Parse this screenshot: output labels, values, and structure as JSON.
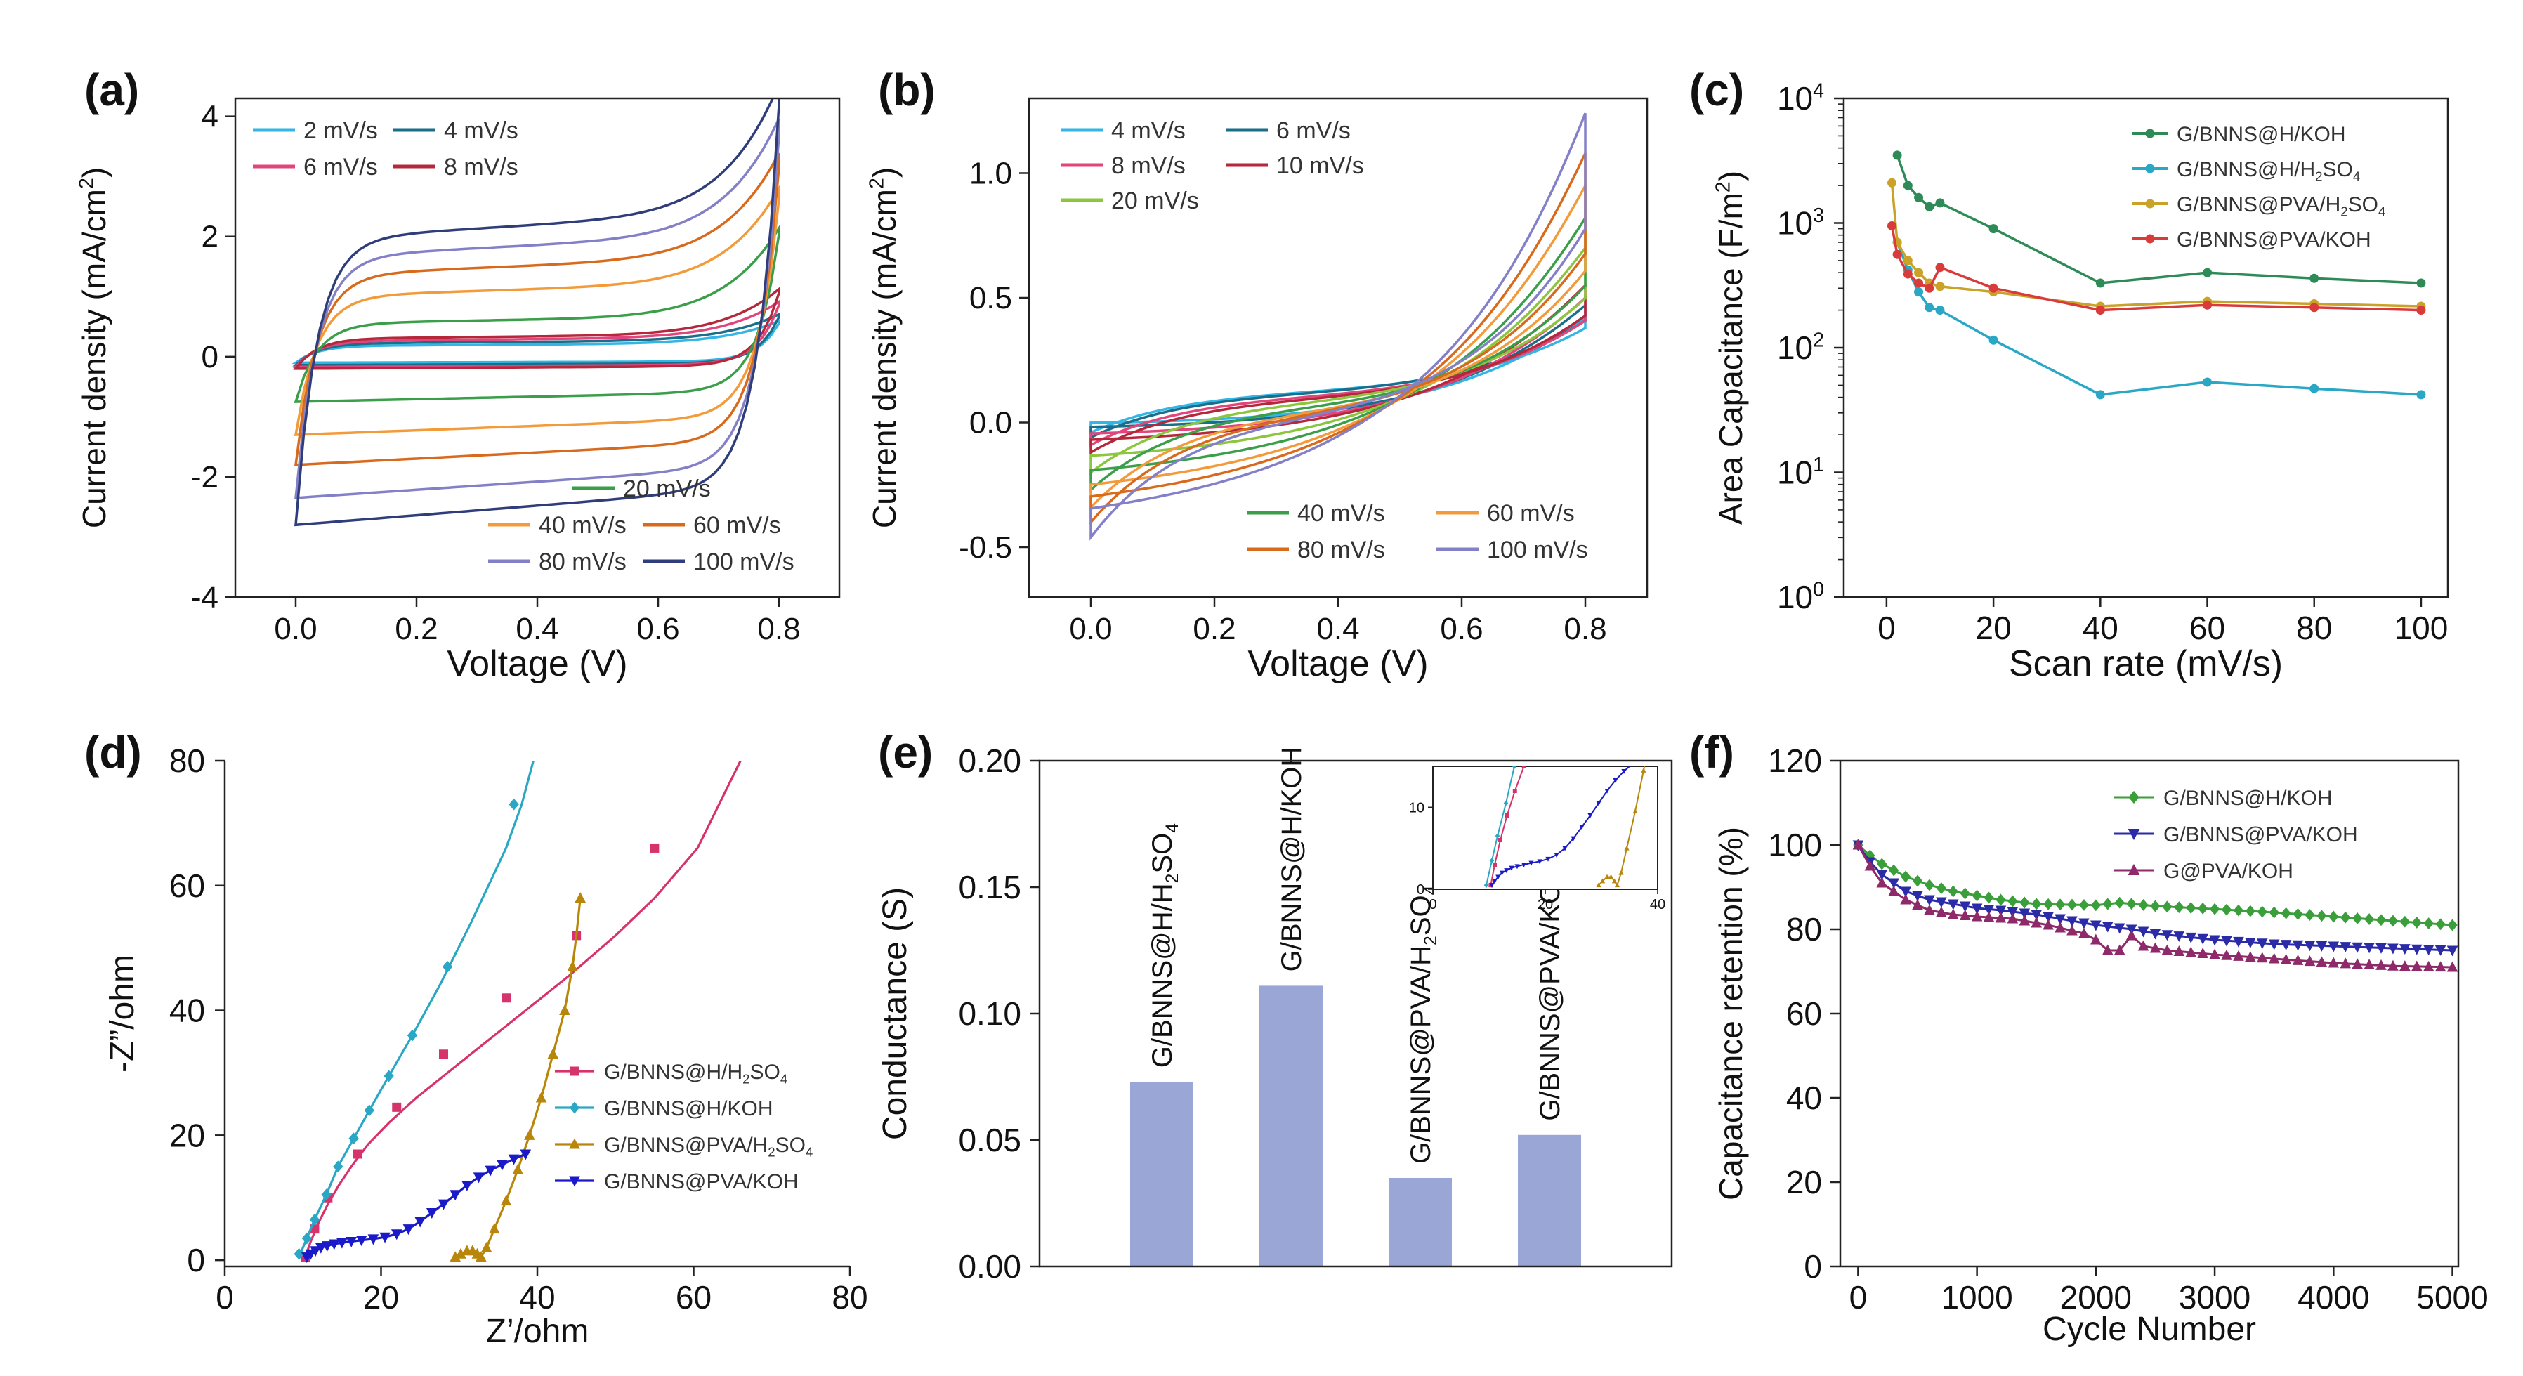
{
  "figure": {
    "panel_labels": [
      "(a)",
      "(b)",
      "(c)",
      "(d)",
      "(e)",
      "(f)"
    ]
  },
  "chart_data": [
    {
      "panel": "(a)",
      "type": "line",
      "title": "",
      "xlabel": "Voltage (V)",
      "ylabel_main": "Current density (mA/cm",
      "ylabel_sup": "2",
      "ylabel_tail": ")",
      "xlim": [
        -0.1,
        0.9
      ],
      "ylim": [
        -4,
        4.3
      ],
      "xticks": [
        0.0,
        0.2,
        0.4,
        0.6,
        0.8
      ],
      "xtick_labels": [
        "0.0",
        "0.2",
        "0.4",
        "0.6",
        "0.8"
      ],
      "yticks": [
        -4,
        -2,
        0,
        2,
        4
      ],
      "ytick_labels": [
        "-4",
        "-2",
        "0",
        "2",
        "4"
      ],
      "cv_model": "capacitive",
      "series": [
        {
          "name": "2 mV/s",
          "color": "#33b5e5",
          "iplus": 0.18,
          "iminus": -0.1,
          "iend": 0.55
        },
        {
          "name": "4 mV/s",
          "color": "#1a6e8a",
          "iplus": 0.22,
          "iminus": -0.14,
          "iend": 0.65
        },
        {
          "name": "6 mV/s",
          "color": "#e0457b",
          "iplus": 0.26,
          "iminus": -0.17,
          "iend": 0.85
        },
        {
          "name": "8 mV/s",
          "color": "#b5283c",
          "iplus": 0.3,
          "iminus": -0.2,
          "iend": 1.05
        },
        {
          "name": "20 mV/s",
          "color": "#3a9e4a",
          "iplus": 0.55,
          "iminus": -0.75,
          "iend": 2.0
        },
        {
          "name": "40 mV/s",
          "color": "#f39b3b",
          "iplus": 1.0,
          "iminus": -1.3,
          "iend": 2.55
        },
        {
          "name": "60 mV/s",
          "color": "#d86a1e",
          "iplus": 1.35,
          "iminus": -1.8,
          "iend": 3.05
        },
        {
          "name": "80 mV/s",
          "color": "#8480c8",
          "iplus": 1.65,
          "iminus": -2.35,
          "iend": 3.55
        },
        {
          "name": "100 mV/s",
          "color": "#2f3d7a",
          "iplus": 1.95,
          "iminus": -2.8,
          "iend": 4.05
        }
      ]
    },
    {
      "panel": "(b)",
      "type": "line",
      "title": "",
      "xlabel": "Voltage (V)",
      "ylabel_main": "Current density (mA/cm",
      "ylabel_sup": "2",
      "ylabel_tail": ")",
      "xlim": [
        -0.1,
        0.9
      ],
      "ylim": [
        -0.7,
        1.3
      ],
      "xticks": [
        0.0,
        0.2,
        0.4,
        0.6,
        0.8
      ],
      "xtick_labels": [
        "0.0",
        "0.2",
        "0.4",
        "0.6",
        "0.8"
      ],
      "yticks": [
        -0.5,
        0.0,
        0.5,
        1.0
      ],
      "ytick_labels": [
        "-0.5",
        "0.0",
        "0.5",
        "1.0"
      ],
      "cv_model": "resistive",
      "series": [
        {
          "name": "4 mV/s",
          "color": "#33b5e5",
          "iplus": 0.32,
          "iminus": -0.04,
          "iend": 0.42
        },
        {
          "name": "6 mV/s",
          "color": "#1a6e8a",
          "iplus": 0.35,
          "iminus": -0.06,
          "iend": 0.47
        },
        {
          "name": "8 mV/s",
          "color": "#e0457b",
          "iplus": 0.38,
          "iminus": -0.09,
          "iend": 0.5
        },
        {
          "name": "10 mV/s",
          "color": "#b5283c",
          "iplus": 0.42,
          "iminus": -0.12,
          "iend": 0.55
        },
        {
          "name": "20 mV/s",
          "color": "#8cc63f",
          "iplus": 0.55,
          "iminus": -0.2,
          "iend": 0.7
        },
        {
          "name": "40 mV/s",
          "color": "#3a9e4a",
          "iplus": 0.65,
          "iminus": -0.27,
          "iend": 0.82
        },
        {
          "name": "60 mV/s",
          "color": "#f39b3b",
          "iplus": 0.75,
          "iminus": -0.34,
          "iend": 0.95
        },
        {
          "name": "80 mV/s",
          "color": "#d86a1e",
          "iplus": 0.85,
          "iminus": -0.4,
          "iend": 1.08
        },
        {
          "name": "100 mV/s",
          "color": "#8480c8",
          "iplus": 0.95,
          "iminus": -0.46,
          "iend": 1.24
        }
      ]
    },
    {
      "panel": "(c)",
      "type": "line",
      "title": "",
      "xlabel": "Scan rate (mV/s)",
      "ylabel_main": "Area Capacitance (F/m",
      "ylabel_sup": "2",
      "ylabel_tail": ")",
      "yscale": "log",
      "xlim": [
        -8,
        105
      ],
      "ylim": [
        1,
        10000
      ],
      "xticks": [
        0,
        20,
        40,
        60,
        80,
        100
      ],
      "xtick_labels": [
        "0",
        "20",
        "40",
        "60",
        "80",
        "100"
      ],
      "yticks": [
        1,
        10,
        100,
        1000,
        10000
      ],
      "ytick_base": "10",
      "ytick_exps": [
        "0",
        "1",
        "2",
        "3",
        "4"
      ],
      "series": [
        {
          "name": "G/BNNS@H/KOH",
          "legend_main": "G/BNNS@H/KOH",
          "legend_sub": "",
          "legend_tail": "",
          "color": "#2e8b57",
          "x": [
            2,
            4,
            6,
            8,
            10,
            20,
            40,
            60,
            80,
            100
          ],
          "y": [
            3500,
            2000,
            1600,
            1350,
            1450,
            900,
            330,
            400,
            360,
            330
          ]
        },
        {
          "name": "G/BNNS@H/H2SO4",
          "legend_main": "G/BNNS@H/H",
          "legend_sub": "2",
          "legend_tail": "SO",
          "legend_sub2": "4",
          "color": "#2aa7c4",
          "x": [
            2,
            4,
            6,
            8,
            10,
            20,
            40,
            60,
            80,
            100
          ],
          "y": [
            700,
            420,
            280,
            210,
            200,
            115,
            42,
            53,
            47,
            42
          ]
        },
        {
          "name": "G/BNNS@PVA/H2SO4",
          "legend_main": "G/BNNS@PVA/H",
          "legend_sub": "2",
          "legend_tail": "SO",
          "legend_sub2": "4",
          "color": "#c9a227",
          "x": [
            1,
            2,
            4,
            6,
            8,
            10,
            20,
            40,
            60,
            80,
            100
          ],
          "y": [
            2100,
            700,
            500,
            400,
            330,
            310,
            280,
            215,
            235,
            225,
            215
          ]
        },
        {
          "name": "G/BNNS@PVA/KOH",
          "legend_main": "G/BNNS@PVA/KOH",
          "legend_sub": "",
          "legend_tail": "",
          "color": "#d93a3a",
          "x": [
            1,
            2,
            4,
            6,
            8,
            10,
            20,
            40,
            60,
            80,
            100
          ],
          "y": [
            950,
            560,
            390,
            330,
            300,
            440,
            300,
            200,
            220,
            210,
            200
          ]
        }
      ]
    },
    {
      "panel": "(d)",
      "type": "scatter",
      "title": "",
      "xlabel": "Z’/ohm",
      "ylabel_main": "-Z”/ohm",
      "ylabel_sup": "",
      "ylabel_tail": "",
      "xlim": [
        0,
        80
      ],
      "ylim": [
        -1,
        80
      ],
      "xticks": [
        0,
        20,
        40,
        60,
        80
      ],
      "xtick_labels": [
        "0",
        "20",
        "40",
        "60",
        "80"
      ],
      "yticks": [
        0,
        20,
        40,
        60,
        80
      ],
      "ytick_labels": [
        "0",
        "20",
        "40",
        "60",
        "80"
      ],
      "series": [
        {
          "name": "G/BNNS@H/H2SO4",
          "legend_main": "G/BNNS@H/H",
          "legend_sub": "2",
          "legend_tail": "SO",
          "legend_sub2": "4",
          "color": "#d6336c",
          "marker": "square",
          "x": [
            10.3,
            11.0,
            12.0,
            13.2,
            14.6,
            16.2,
            18.3,
            21.0,
            24.5,
            28.5,
            33.0,
            38.0,
            44.0,
            50.0,
            55.0,
            60.5,
            66.0
          ],
          "y": [
            0.5,
            3.0,
            6.0,
            9.0,
            12.0,
            15.0,
            18.5,
            22.0,
            26.0,
            30.0,
            34.5,
            39.5,
            45.5,
            52.0,
            58.0,
            66.0,
            80.0
          ],
          "marker_x": [
            10.3,
            11.5,
            13.2,
            17.0,
            22.0,
            28.0,
            36.0,
            45.0,
            55.0
          ],
          "marker_y": [
            0.5,
            5.0,
            10.0,
            17.0,
            24.5,
            33.0,
            42.0,
            52.0,
            66.0
          ]
        },
        {
          "name": "G/BNNS@H/KOH",
          "legend_main": "G/BNNS@H/KOH",
          "legend_sub": "",
          "legend_tail": "",
          "color": "#2aa7c4",
          "marker": "diamond",
          "x": [
            9.5,
            10.5,
            11.5,
            13.0,
            14.5,
            16.5,
            18.5,
            21.0,
            24.0,
            27.5,
            31.5,
            36.0,
            38.0,
            39.5
          ],
          "y": [
            0.5,
            3.5,
            6.5,
            10.5,
            15.0,
            19.5,
            24.0,
            29.5,
            36.0,
            44.0,
            54.0,
            66.0,
            73.0,
            80.0
          ],
          "marker_x": [
            9.5,
            10.5,
            11.5,
            13.0,
            14.5,
            16.5,
            18.5,
            21.0,
            24.0,
            28.5,
            37.0
          ],
          "marker_y": [
            1.0,
            3.5,
            6.5,
            10.5,
            15.0,
            19.5,
            24.0,
            29.5,
            36.0,
            47.0,
            73.0
          ]
        },
        {
          "name": "G/BNNS@PVA/H2SO4",
          "legend_main": "G/BNNS@PVA/H",
          "legend_sub": "2",
          "legend_tail": "SO",
          "legend_sub2": "4",
          "color": "#b8860b",
          "marker": "triangle-up",
          "x": [
            29.5,
            30.2,
            31.0,
            31.7,
            32.3,
            32.8,
            33.5,
            34.5,
            36.0,
            37.5,
            39.0,
            40.5,
            42.0,
            43.5,
            44.5,
            45.0,
            45.5
          ],
          "y": [
            0.5,
            1.0,
            1.5,
            1.5,
            1.0,
            0.5,
            2.0,
            5.0,
            9.5,
            14.5,
            20.0,
            26.0,
            33.0,
            40.0,
            47.0,
            52.0,
            58.0
          ],
          "marker_x": [
            29.5,
            30.2,
            31.0,
            31.7,
            32.3,
            32.8,
            33.5,
            34.5,
            36.0,
            37.5,
            39.0,
            40.5,
            42.0,
            43.5,
            44.5,
            45.5
          ],
          "marker_y": [
            0.5,
            1.0,
            1.5,
            1.5,
            1.0,
            0.5,
            2.0,
            5.0,
            9.5,
            14.5,
            20.0,
            26.0,
            33.0,
            40.0,
            47.0,
            58.0
          ]
        },
        {
          "name": "G/BNNS@PVA/KOH",
          "legend_main": "G/BNNS@PVA/KOH",
          "legend_sub": "",
          "legend_tail": "",
          "color": "#1a1ac8",
          "marker": "triangle-down",
          "x": [
            10.5,
            11.0,
            11.6,
            12.3,
            13.1,
            14.0,
            15.0,
            16.2,
            17.5,
            19.0,
            20.5,
            22.0,
            23.5,
            25.0,
            26.5,
            28.0,
            29.5,
            31.0,
            32.5,
            34.0,
            35.5,
            37.0,
            38.5
          ],
          "y": [
            0.5,
            1.0,
            1.5,
            2.0,
            2.3,
            2.6,
            2.8,
            3.0,
            3.2,
            3.4,
            3.7,
            4.2,
            5.0,
            6.2,
            7.6,
            9.0,
            10.5,
            12.0,
            13.3,
            14.4,
            15.3,
            16.2,
            17.0
          ]
        }
      ]
    },
    {
      "panel": "(e)",
      "type": "bar",
      "title": "",
      "xlabel": "",
      "ylabel_main": "Conductance (S)",
      "ylabel_sup": "",
      "ylabel_tail": "",
      "ylim": [
        0,
        0.2
      ],
      "yticks": [
        0.0,
        0.05,
        0.1,
        0.15,
        0.2
      ],
      "ytick_labels": [
        "0.00",
        "0.05",
        "0.10",
        "0.15",
        "0.20"
      ],
      "bar_color": "#99a6d6",
      "categories": [
        "G/BNNS@H/H2SO4",
        "G/BNNS@H/KOH",
        "G/BNNS@PVA/H2SO4",
        "G/BNNS@PVA/KOH"
      ],
      "bar_labels": [
        {
          "main": "G/BNNS@H/H",
          "sub": "2",
          "tail": "SO",
          "sub2": "4"
        },
        {
          "main": "G/BNNS@H/KOH",
          "sub": "",
          "tail": "",
          "sub2": ""
        },
        {
          "main": "G/BNNS@PVA/H",
          "sub": "2",
          "tail": "SO",
          "sub2": "4"
        },
        {
          "main": "G/BNNS@PVA/KOH",
          "sub": "",
          "tail": "",
          "sub2": ""
        }
      ],
      "values": [
        0.073,
        0.111,
        0.035,
        0.052
      ],
      "inset": {
        "xlim": [
          0,
          40
        ],
        "ylim": [
          0,
          15
        ],
        "xticks": [
          0,
          20,
          40
        ],
        "xtick_labels": [
          "0",
          "20",
          "40"
        ],
        "yticks": [
          0,
          10
        ],
        "ytick_labels": [
          "0",
          "10"
        ]
      }
    },
    {
      "panel": "(f)",
      "type": "line",
      "title": "",
      "xlabel": "Cycle Number",
      "ylabel_main": "Capacitance retention (%)",
      "ylabel_sup": "",
      "ylabel_tail": "",
      "xlim": [
        -150,
        5050
      ],
      "ylim": [
        0,
        120
      ],
      "xticks": [
        0,
        1000,
        2000,
        3000,
        4000,
        5000
      ],
      "xtick_labels": [
        "0",
        "1000",
        "2000",
        "3000",
        "4000",
        "5000"
      ],
      "yticks": [
        0,
        20,
        40,
        60,
        80,
        100,
        120
      ],
      "ytick_labels": [
        "0",
        "20",
        "40",
        "60",
        "80",
        "100",
        "120"
      ],
      "series": [
        {
          "name": "G/BNNS@H/KOH",
          "legend_main": "G/BNNS@H/KOH",
          "legend_sub": "",
          "legend_tail": "",
          "color": "#3a9e3a",
          "marker": "diamond",
          "x": [
            0,
            100,
            200,
            400,
            600,
            800,
            1000,
            1200,
            1500,
            2000,
            2200,
            2500,
            3000,
            3500,
            4000,
            4500,
            5000
          ],
          "y": [
            100,
            97.5,
            95.5,
            92.5,
            90.5,
            89,
            88,
            87,
            86,
            85.7,
            86.3,
            85.5,
            84.8,
            84,
            83,
            82,
            81
          ]
        },
        {
          "name": "G/BNNS@PVA/KOH",
          "legend_main": "G/BNNS@PVA/KOH",
          "legend_sub": "",
          "legend_tail": "",
          "color": "#2b2ba8",
          "marker": "triangle-down",
          "x": [
            0,
            100,
            200,
            400,
            600,
            800,
            1000,
            1200,
            1500,
            1800,
            2000,
            2300,
            2500,
            3000,
            3500,
            4000,
            4500,
            5000
          ],
          "y": [
            100,
            96,
            93,
            89,
            87,
            86,
            85,
            84.5,
            83.5,
            82,
            81,
            80,
            79,
            77.5,
            76.5,
            76,
            75.5,
            75
          ]
        },
        {
          "name": "G@PVA/KOH",
          "legend_main": "G@PVA/KOH",
          "legend_sub": "",
          "legend_tail": "",
          "color": "#8e2a6a",
          "marker": "triangle-up",
          "x": [
            0,
            100,
            200,
            400,
            600,
            800,
            1000,
            1300,
            1600,
            1900,
            2000,
            2100,
            2200,
            2300,
            2400,
            2600,
            3000,
            3500,
            4000,
            4500,
            5000
          ],
          "y": [
            100,
            95,
            91,
            87,
            84.5,
            83.5,
            83,
            82.5,
            81,
            79,
            77.5,
            75,
            75,
            78.5,
            76,
            75,
            74,
            73,
            72,
            71.3,
            71
          ]
        }
      ]
    }
  ]
}
